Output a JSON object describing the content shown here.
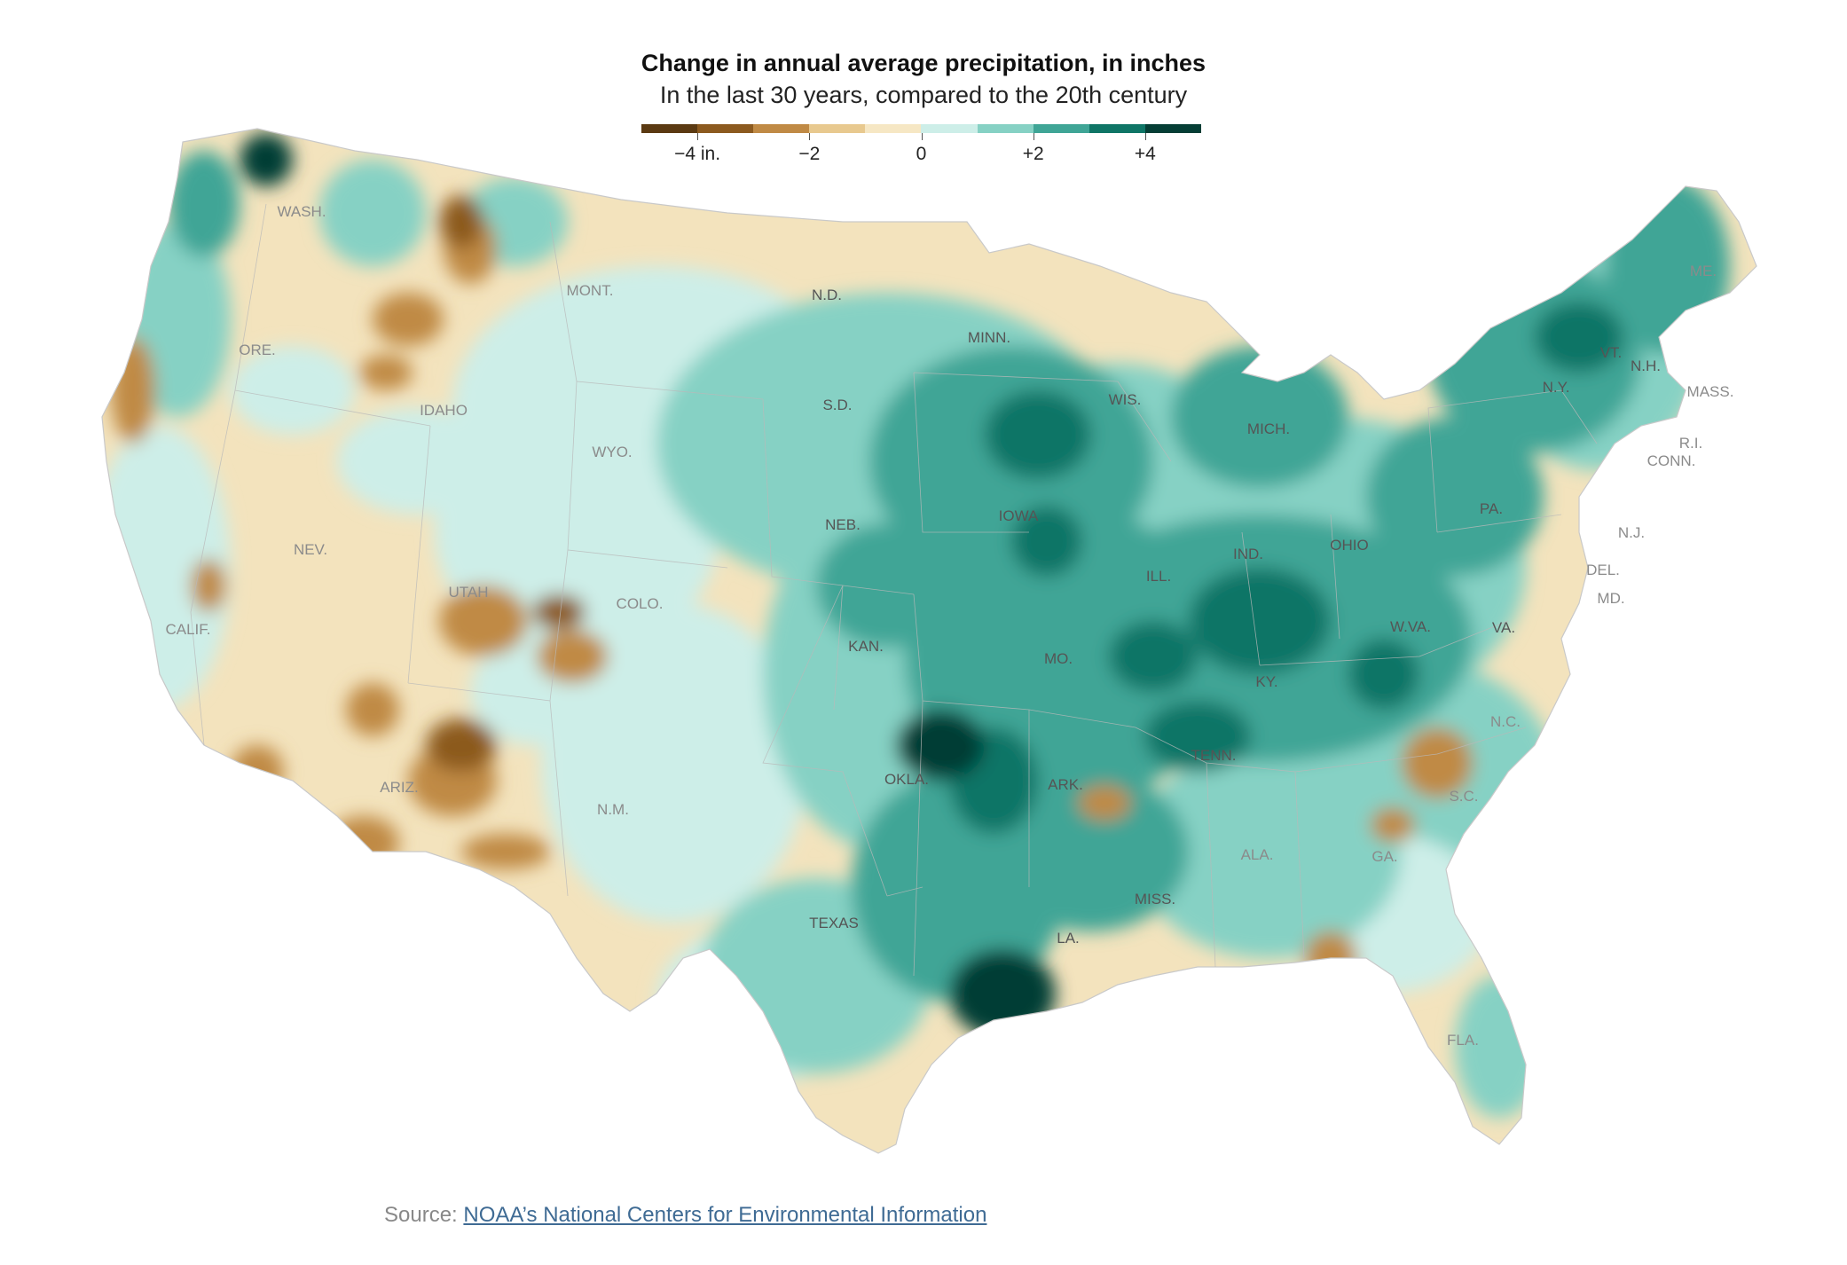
{
  "title": "Change in annual average precipitation, in inches",
  "subtitle": "In the last 30 years, compared to the 20th century",
  "legend": {
    "colors": [
      "#5b3a12",
      "#8c5a1f",
      "#c08a45",
      "#e8c98f",
      "#f6e7c4",
      "#cdeee8",
      "#86d1c4",
      "#3fa596",
      "#0f7566",
      "#053e35"
    ],
    "ticks": [
      {
        "label": "−4 in.",
        "value": -4
      },
      {
        "label": "−2",
        "value": -2
      },
      {
        "label": "0",
        "value": 0
      },
      {
        "label": "+2",
        "value": 2
      },
      {
        "label": "+4",
        "value": 4
      }
    ],
    "range": [
      -5,
      5
    ]
  },
  "map": {
    "land_color": "#f3e3bd",
    "state_labels": [
      {
        "name": "WASH."
      },
      {
        "name": "ORE."
      },
      {
        "name": "CALIF."
      },
      {
        "name": "IDAHO"
      },
      {
        "name": "NEV."
      },
      {
        "name": "UTAH"
      },
      {
        "name": "ARIZ."
      },
      {
        "name": "MONT."
      },
      {
        "name": "WYO."
      },
      {
        "name": "COLO."
      },
      {
        "name": "N.M."
      },
      {
        "name": "N.D."
      },
      {
        "name": "S.D."
      },
      {
        "name": "NEB."
      },
      {
        "name": "KAN."
      },
      {
        "name": "OKLA."
      },
      {
        "name": "TEXAS"
      },
      {
        "name": "MINN."
      },
      {
        "name": "IOWA"
      },
      {
        "name": "MO."
      },
      {
        "name": "ARK."
      },
      {
        "name": "LA."
      },
      {
        "name": "WIS."
      },
      {
        "name": "ILL."
      },
      {
        "name": "MICH."
      },
      {
        "name": "IND."
      },
      {
        "name": "OHIO"
      },
      {
        "name": "KY."
      },
      {
        "name": "TENN."
      },
      {
        "name": "MISS."
      },
      {
        "name": "ALA."
      },
      {
        "name": "GA."
      },
      {
        "name": "FLA."
      },
      {
        "name": "S.C."
      },
      {
        "name": "N.C."
      },
      {
        "name": "VA."
      },
      {
        "name": "W.VA."
      },
      {
        "name": "PA."
      },
      {
        "name": "N.Y."
      },
      {
        "name": "VT."
      },
      {
        "name": "N.H."
      },
      {
        "name": "ME."
      },
      {
        "name": "MASS."
      },
      {
        "name": "R.I."
      },
      {
        "name": "CONN."
      },
      {
        "name": "N.J."
      },
      {
        "name": "DEL."
      },
      {
        "name": "MD."
      }
    ]
  },
  "source": {
    "prefix": "Source: ",
    "link_text": "NOAA’s National Centers for Environmental Information"
  }
}
